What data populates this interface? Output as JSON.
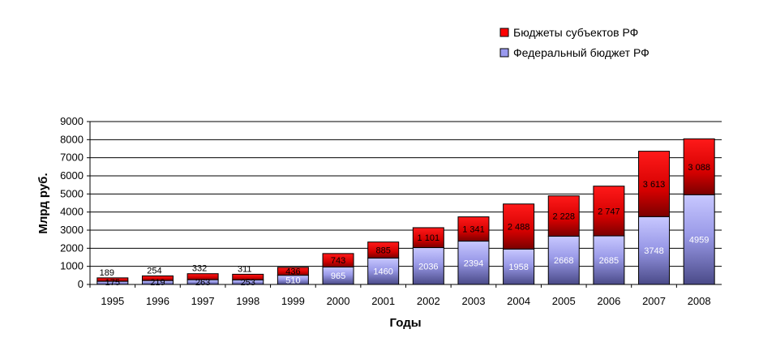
{
  "chart_data": {
    "type": "bar",
    "stacked": true,
    "categories": [
      "1995",
      "1996",
      "1997",
      "1998",
      "1999",
      "2000",
      "2001",
      "2002",
      "2003",
      "2004",
      "2005",
      "2006",
      "2007",
      "2008"
    ],
    "series": [
      {
        "name": "Федеральный бюджет РФ",
        "color": "#9999ee",
        "values": [
          175,
          219,
          263,
          253,
          510,
          965,
          1460,
          2036,
          2394,
          1958,
          2668,
          2685,
          3748,
          4959
        ],
        "labels": [
          "175",
          "219",
          "263",
          "253",
          "510",
          "965",
          "1460",
          "2036",
          "2394",
          "1958",
          "2668",
          "2685",
          "3748",
          "4959"
        ]
      },
      {
        "name": "Бюджеты субъектов РФ",
        "color": "#ff0000",
        "values": [
          189,
          254,
          332,
          311,
          436,
          743,
          885,
          1101,
          1341,
          2488,
          2228,
          2747,
          3613,
          3088
        ],
        "labels": [
          "189",
          "254",
          "332",
          "311",
          "436",
          "743",
          "885",
          "1 101",
          "1 341",
          "2 488",
          "2 228",
          "2 747",
          "3 613",
          "3 088"
        ]
      }
    ],
    "xlabel": "Годы",
    "ylabel": "Млрд руб.",
    "ylim": [
      0,
      9000
    ],
    "yticks": [
      0,
      1000,
      2000,
      3000,
      4000,
      5000,
      6000,
      7000,
      8000,
      9000
    ],
    "grid": true,
    "legend": "top-right"
  }
}
